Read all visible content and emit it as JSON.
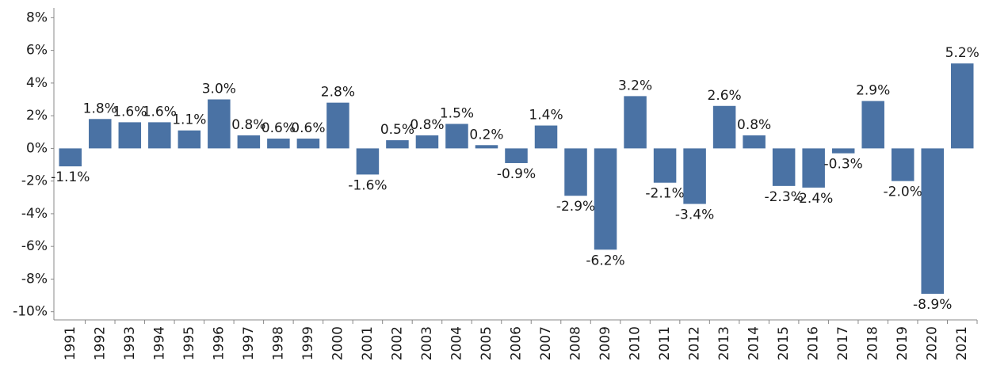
{
  "chart_data": {
    "type": "bar",
    "categories": [
      "1991",
      "1992",
      "1993",
      "1994",
      "1995",
      "1996",
      "1997",
      "1998",
      "1999",
      "2000",
      "2001",
      "2002",
      "2003",
      "2004",
      "2005",
      "2006",
      "2007",
      "2008",
      "2009",
      "2010",
      "2011",
      "2012",
      "2013",
      "2014",
      "2015",
      "2016",
      "2017",
      "2018",
      "2019",
      "2020",
      "2021"
    ],
    "values": [
      -1.1,
      1.8,
      1.6,
      1.6,
      1.1,
      3.0,
      0.8,
      0.6,
      0.6,
      2.8,
      -1.6,
      0.5,
      0.8,
      1.5,
      0.2,
      -0.9,
      1.4,
      -2.9,
      -6.2,
      3.2,
      -2.1,
      -3.4,
      2.6,
      0.8,
      -2.3,
      -2.4,
      -0.3,
      2.9,
      -2.0,
      -8.9,
      5.2
    ],
    "value_labels": [
      "-1.1%",
      "1.8%",
      "1.6%",
      "1.6%",
      "1.1%",
      "3.0%",
      "0.8%",
      "0.6%",
      "0.6%",
      "2.8%",
      "-1.6%",
      "0.5%",
      "0.8%",
      "1.5%",
      "0.2%",
      "-0.9%",
      "1.4%",
      "-2.9%",
      "-6.2%",
      "3.2%",
      "-2.1%",
      "-3.4%",
      "2.6%",
      "0.8%",
      "-2.3%",
      "-2.4%",
      "-0.3%",
      "2.9%",
      "-2.0%",
      "-8.9%",
      "5.2%"
    ],
    "color": "#4a72a4",
    "ylim": [
      -10.5,
      8.6
    ],
    "yticks": [
      {
        "value": -10,
        "label": "-10%"
      },
      {
        "value": -8,
        "label": "-8%"
      },
      {
        "value": -6,
        "label": "-6%"
      },
      {
        "value": -4,
        "label": "-4%"
      },
      {
        "value": -2,
        "label": "-2%"
      },
      {
        "value": 0,
        "label": "0%"
      },
      {
        "value": 2,
        "label": "2%"
      },
      {
        "value": 4,
        "label": "4%"
      },
      {
        "value": 6,
        "label": "6%"
      },
      {
        "value": 8,
        "label": "8%"
      }
    ],
    "grid": false
  }
}
